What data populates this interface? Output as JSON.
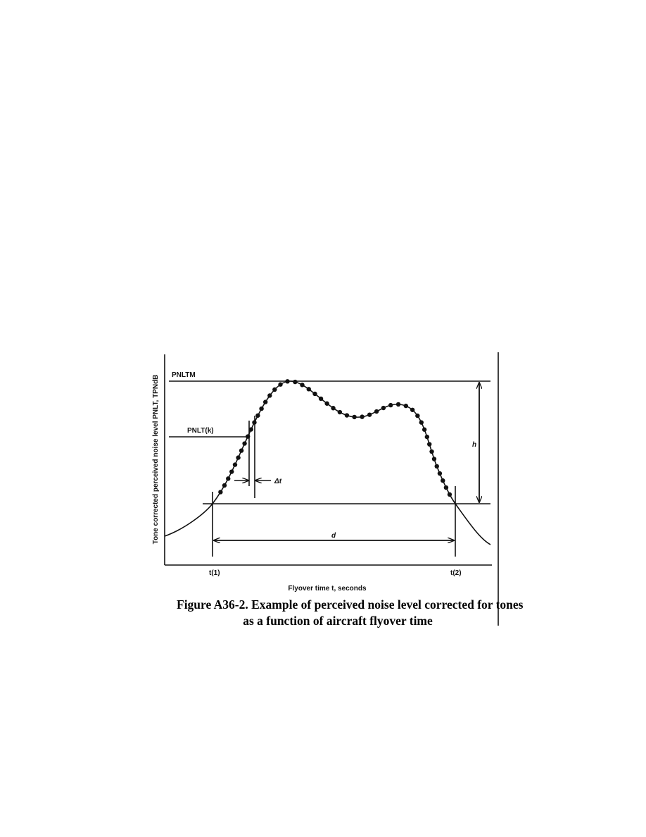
{
  "figure": {
    "labels": {
      "pnltm": "PNLTM",
      "pnlt_k": "PNLT(k)",
      "h": "h",
      "delta_t": "Δt",
      "d": "d",
      "t1": "t(1)",
      "t2": "t(2)"
    },
    "y_axis_label": "Tone corrected perceived noise level PNLT, TPNdB",
    "x_axis_label": "Flyover time t, seconds",
    "caption": [
      "Figure A36-2.  Example of perceived noise level corrected for tones",
      "as a function of aircraft flyover time"
    ]
  }
}
